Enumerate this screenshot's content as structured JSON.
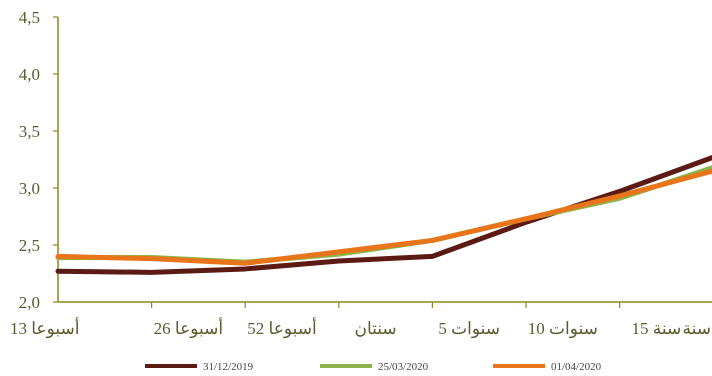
{
  "chart_data": {
    "type": "line",
    "categories": [
      "13 أسبوعا",
      "26 أسبوعا",
      "52 أسبوعا",
      "سنتان",
      "5 سنوات",
      "10 سنوات",
      "15 سنة",
      "سنة"
    ],
    "ylim": [
      2.0,
      4.5
    ],
    "yticks": [
      "2,0",
      "2,5",
      "3,0",
      "3,5",
      "4,0",
      "4,5"
    ],
    "ytick_values": [
      2.0,
      2.5,
      3.0,
      3.5,
      4.0,
      4.5
    ],
    "grid": false,
    "legend": "bottom",
    "series": [
      {
        "name": "31/12/2019",
        "color": "#5c1a14",
        "values": [
          2.27,
          2.26,
          2.29,
          2.36,
          2.4,
          2.7,
          2.97,
          3.27
        ]
      },
      {
        "name": "25/03/2020",
        "color": "#8db44a",
        "values": [
          2.39,
          2.39,
          2.35,
          2.42,
          2.54,
          2.73,
          2.91,
          3.18
        ]
      },
      {
        "name": "01/04/2020",
        "color": "#e8751a",
        "values": [
          2.4,
          2.38,
          2.34,
          2.44,
          2.54,
          2.73,
          2.93,
          3.15
        ]
      }
    ],
    "axis_color": "#8a8a1e"
  }
}
